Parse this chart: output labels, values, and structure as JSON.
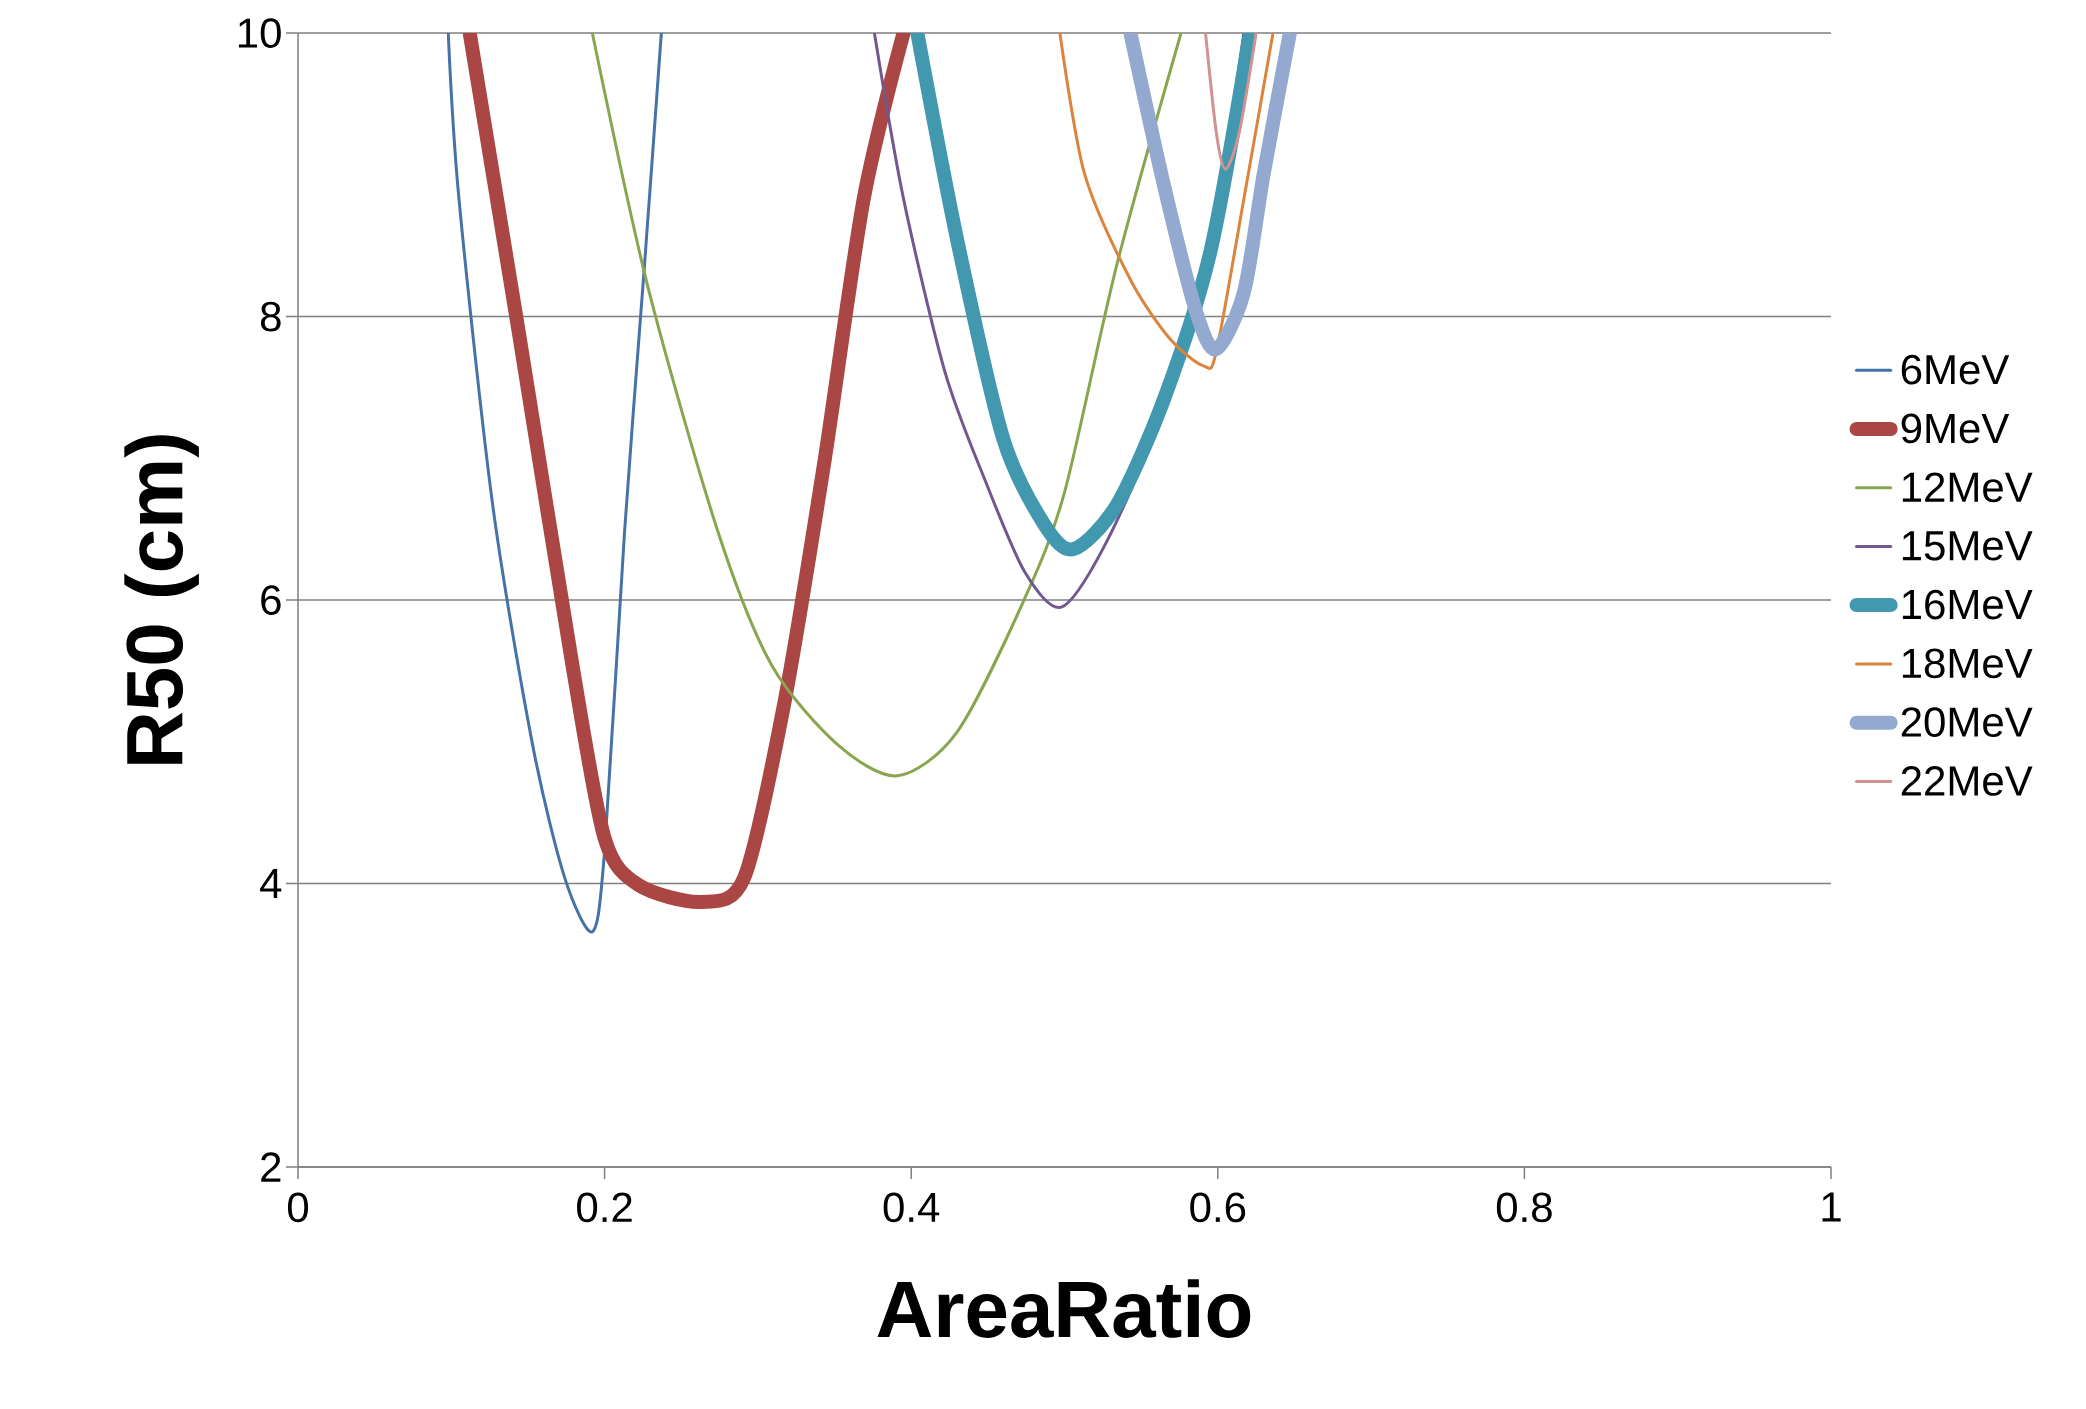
{
  "chart_data": {
    "type": "line",
    "xlabel": "AreaRatio",
    "ylabel": "R50 (cm)",
    "xlim": [
      0,
      1
    ],
    "ylim": [
      2,
      10
    ],
    "xticks": [
      0,
      0.2,
      0.4,
      0.6,
      0.8,
      1
    ],
    "yticks": [
      2,
      4,
      6,
      8,
      10
    ],
    "grid": "y",
    "legend": "right",
    "marker": "none",
    "line_style": "solid",
    "series": [
      {
        "name": "6MeV",
        "color": "#4572a7",
        "x": [
          0.098,
          0.105,
          0.127,
          0.153,
          0.174,
          0.192,
          0.2,
          0.213,
          0.226,
          0.237
        ],
        "values": [
          10,
          8.83,
          6.67,
          4.98,
          4.04,
          3.66,
          4.23,
          6.48,
          8.36,
          10
        ]
      },
      {
        "name": "9MeV",
        "color": "#aa4643",
        "x": [
          0.112,
          0.144,
          0.179,
          0.2,
          0.222,
          0.263,
          0.291,
          0.317,
          0.343,
          0.369,
          0.395
        ],
        "values": [
          10,
          7.89,
          5.54,
          4.32,
          3.99,
          3.87,
          4.04,
          5.26,
          6.95,
          8.83,
          10
        ]
      },
      {
        "name": "12MeV",
        "color": "#89a54e",
        "x": [
          0.192,
          0.228,
          0.274,
          0.309,
          0.352,
          0.391,
          0.43,
          0.474,
          0.5,
          0.534,
          0.576
        ],
        "values": [
          10,
          8.22,
          6.48,
          5.54,
          4.98,
          4.76,
          5.07,
          6.01,
          6.76,
          8.36,
          10
        ]
      },
      {
        "name": "15MeV",
        "color": "#71588f",
        "x": [
          0.376,
          0.395,
          0.422,
          0.448,
          0.474,
          0.498,
          0.526,
          0.56,
          0.595,
          0.617
        ],
        "values": [
          10,
          8.83,
          7.61,
          6.85,
          6.2,
          5.95,
          6.38,
          7.23,
          8.54,
          10
        ]
      },
      {
        "name": "16MeV",
        "color": "#4198af",
        "x": [
          0.404,
          0.43,
          0.46,
          0.487,
          0.506,
          0.534,
          0.565,
          0.595,
          0.621
        ],
        "values": [
          10,
          8.54,
          7.14,
          6.53,
          6.36,
          6.67,
          7.42,
          8.45,
          10
        ]
      },
      {
        "name": "18MeV",
        "color": "#db843d",
        "x": [
          0.497,
          0.513,
          0.543,
          0.569,
          0.591,
          0.599,
          0.617,
          0.636
        ],
        "values": [
          10,
          9.01,
          8.26,
          7.84,
          7.65,
          7.75,
          8.83,
          10
        ]
      },
      {
        "name": "20MeV",
        "color": "#93a9cf",
        "x": [
          0.543,
          0.565,
          0.586,
          0.599,
          0.617,
          0.63,
          0.647
        ],
        "values": [
          10,
          8.92,
          8.03,
          7.77,
          8.17,
          9.01,
          10
        ]
      },
      {
        "name": "22MeV",
        "color": "#d19392",
        "x": [
          0.592,
          0.599,
          0.605,
          0.614,
          0.625
        ],
        "values": [
          10,
          9.3,
          9.04,
          9.3,
          10
        ]
      }
    ]
  }
}
